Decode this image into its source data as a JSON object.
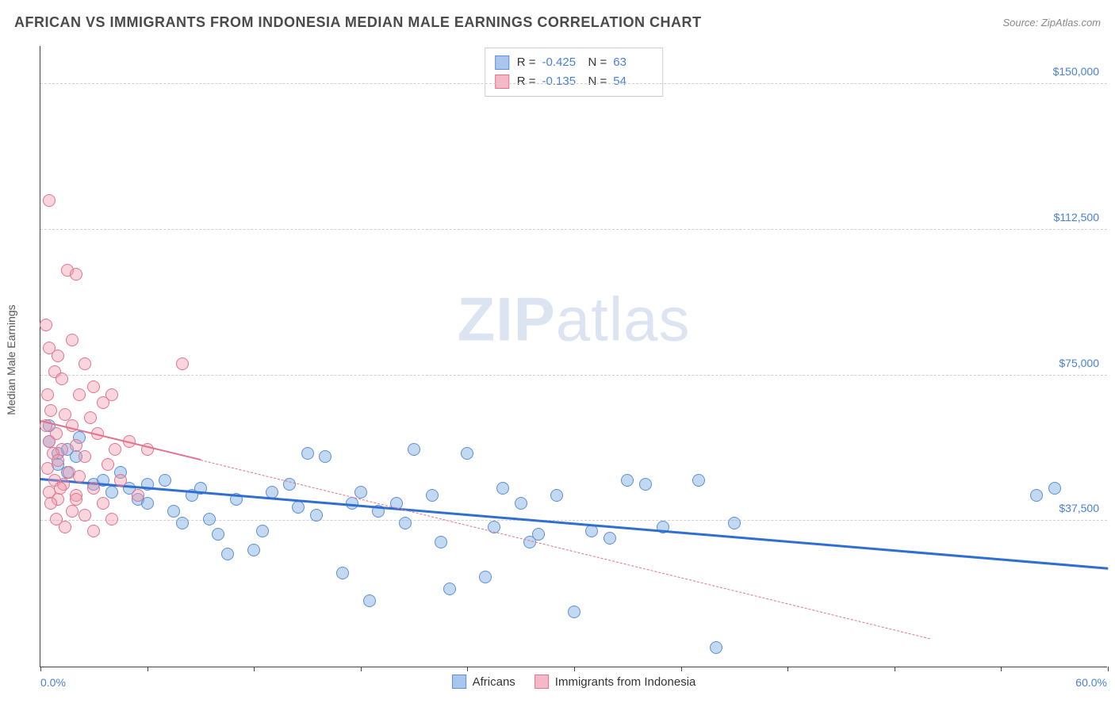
{
  "title": "AFRICAN VS IMMIGRANTS FROM INDONESIA MEDIAN MALE EARNINGS CORRELATION CHART",
  "source": "Source: ZipAtlas.com",
  "ylabel": "Median Male Earnings",
  "watermark_bold": "ZIP",
  "watermark_rest": "atlas",
  "chart": {
    "type": "scatter",
    "background_color": "#ffffff",
    "grid_color": "#d0d0d0",
    "axis_color": "#444444",
    "text_color": "#4a4a4a",
    "tick_label_color": "#4a7fd8",
    "xlim": [
      0,
      60
    ],
    "ylim": [
      0,
      160000
    ],
    "x_unit": "%",
    "xlabel_min": "0.0%",
    "xlabel_max": "60.0%",
    "xtick_positions": [
      0,
      6,
      12,
      18,
      24,
      30,
      36,
      42,
      48,
      54,
      60
    ],
    "ytick_values": [
      37500,
      75000,
      112500,
      150000
    ],
    "ytick_labels": [
      "$37,500",
      "$75,000",
      "$112,500",
      "$150,000"
    ],
    "marker_radius": 8,
    "marker_border_width": 1.5,
    "series": [
      {
        "id": "africans",
        "label": "Africans",
        "fill_color": "rgba(121,168,225,0.45)",
        "stroke_color": "#5b8fd6",
        "swatch_fill": "#a9c7ec",
        "swatch_border": "#5b8fd6",
        "R": "-0.425",
        "N": "63",
        "trend": {
          "x1": 0,
          "y1": 48000,
          "x2": 60,
          "y2": 25000,
          "color": "#2e6fd1",
          "width": 2.5,
          "dashed_extension": false
        },
        "points": [
          [
            0.5,
            62000
          ],
          [
            0.5,
            58000
          ],
          [
            1,
            55000
          ],
          [
            1,
            52000
          ],
          [
            1.5,
            56000
          ],
          [
            1.5,
            50000
          ],
          [
            2,
            54000
          ],
          [
            2.2,
            59000
          ],
          [
            3,
            47000
          ],
          [
            3.5,
            48000
          ],
          [
            4,
            45000
          ],
          [
            4.5,
            50000
          ],
          [
            5,
            46000
          ],
          [
            5.5,
            43000
          ],
          [
            6,
            47000
          ],
          [
            6,
            42000
          ],
          [
            7,
            48000
          ],
          [
            7.5,
            40000
          ],
          [
            8,
            37000
          ],
          [
            8.5,
            44000
          ],
          [
            9,
            46000
          ],
          [
            9.5,
            38000
          ],
          [
            10,
            34000
          ],
          [
            10.5,
            29000
          ],
          [
            11,
            43000
          ],
          [
            12,
            30000
          ],
          [
            12.5,
            35000
          ],
          [
            13,
            45000
          ],
          [
            14,
            47000
          ],
          [
            14.5,
            41000
          ],
          [
            15,
            55000
          ],
          [
            15.5,
            39000
          ],
          [
            16,
            54000
          ],
          [
            17,
            24000
          ],
          [
            17.5,
            42000
          ],
          [
            18,
            45000
          ],
          [
            18.5,
            17000
          ],
          [
            19,
            40000
          ],
          [
            20,
            42000
          ],
          [
            20.5,
            37000
          ],
          [
            21,
            56000
          ],
          [
            22,
            44000
          ],
          [
            22.5,
            32000
          ],
          [
            23,
            20000
          ],
          [
            24,
            55000
          ],
          [
            25,
            23000
          ],
          [
            25.5,
            36000
          ],
          [
            26,
            46000
          ],
          [
            27,
            42000
          ],
          [
            27.5,
            32000
          ],
          [
            28,
            34000
          ],
          [
            29,
            44000
          ],
          [
            30,
            14000
          ],
          [
            31,
            35000
          ],
          [
            32,
            33000
          ],
          [
            33,
            48000
          ],
          [
            34,
            47000
          ],
          [
            35,
            36000
          ],
          [
            37,
            48000
          ],
          [
            38,
            5000
          ],
          [
            39,
            37000
          ],
          [
            56,
            44000
          ],
          [
            57,
            46000
          ]
        ]
      },
      {
        "id": "indonesia",
        "label": "Immigrants from Indonesia",
        "fill_color": "rgba(240,150,170,0.40)",
        "stroke_color": "#e2738f",
        "swatch_fill": "#f5b8c6",
        "swatch_border": "#e2738f",
        "R": "-0.135",
        "N": "54",
        "trend": {
          "x1": 0,
          "y1": 63000,
          "x2": 9,
          "y2": 53000,
          "color": "#e2738f",
          "width": 2,
          "dashed_extension": true,
          "dash_x2": 50,
          "dash_y2": 7000
        },
        "points": [
          [
            0.5,
            120000
          ],
          [
            1.5,
            102000
          ],
          [
            2,
            101000
          ],
          [
            0.3,
            88000
          ],
          [
            1.8,
            84000
          ],
          [
            0.5,
            82000
          ],
          [
            1,
            80000
          ],
          [
            2.5,
            78000
          ],
          [
            8,
            78000
          ],
          [
            0.8,
            76000
          ],
          [
            1.2,
            74000
          ],
          [
            3,
            72000
          ],
          [
            0.4,
            70000
          ],
          [
            2.2,
            70000
          ],
          [
            4,
            70000
          ],
          [
            3.5,
            68000
          ],
          [
            0.6,
            66000
          ],
          [
            1.4,
            65000
          ],
          [
            2.8,
            64000
          ],
          [
            0.3,
            62000
          ],
          [
            1.8,
            62000
          ],
          [
            0.9,
            60000
          ],
          [
            3.2,
            60000
          ],
          [
            5,
            58000
          ],
          [
            0.5,
            58000
          ],
          [
            2,
            57000
          ],
          [
            1.2,
            56000
          ],
          [
            4.2,
            56000
          ],
          [
            6,
            56000
          ],
          [
            0.7,
            55000
          ],
          [
            2.5,
            54000
          ],
          [
            1,
            53000
          ],
          [
            3.8,
            52000
          ],
          [
            0.4,
            51000
          ],
          [
            1.6,
            50000
          ],
          [
            2.2,
            49000
          ],
          [
            0.8,
            48000
          ],
          [
            4.5,
            48000
          ],
          [
            1.3,
            47000
          ],
          [
            3,
            46000
          ],
          [
            0.5,
            45000
          ],
          [
            2,
            44000
          ],
          [
            5.5,
            44000
          ],
          [
            1,
            43000
          ],
          [
            0.6,
            42000
          ],
          [
            3.5,
            42000
          ],
          [
            1.8,
            40000
          ],
          [
            2.5,
            39000
          ],
          [
            0.9,
            38000
          ],
          [
            4,
            38000
          ],
          [
            1.4,
            36000
          ],
          [
            3,
            35000
          ],
          [
            2,
            43000
          ],
          [
            1.1,
            46000
          ]
        ]
      }
    ]
  }
}
